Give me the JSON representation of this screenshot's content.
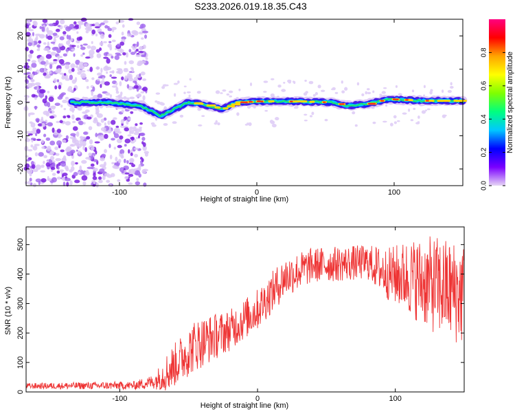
{
  "title": "S233.2026.019.18.35.C43",
  "chart_data": [
    {
      "type": "heatmap",
      "xlabel": "Height of straight line (km)",
      "ylabel": "Frequency (Hz)",
      "xlim": [
        -168,
        150
      ],
      "ylim": [
        -25,
        25
      ],
      "x_ticks": [
        -100,
        0,
        100
      ],
      "y_ticks": [
        -20,
        -10,
        0,
        10,
        20
      ],
      "colorbar": {
        "label": "Normalized spectral amplitude",
        "range": [
          0,
          1
        ],
        "ticks": [
          0.0,
          0.2,
          0.4,
          0.6,
          0.8
        ],
        "tick_labels": [
          "0.0",
          "0.2",
          "0.4",
          "0.6",
          "0.8"
        ],
        "colors": [
          "#e6d6f5",
          "#7a00ff",
          "#0000ff",
          "#00c8ff",
          "#00ff7f",
          "#7fff00",
          "#ffff00",
          "#ffa500",
          "#ff0000",
          "#ff0080"
        ]
      },
      "noise_region_x": [
        -168,
        -80
      ],
      "ridge": [
        {
          "x": -135,
          "f": 0
        },
        {
          "x": -110,
          "f": 0
        },
        {
          "x": -85,
          "f": -1
        },
        {
          "x": -70,
          "f": -4
        },
        {
          "x": -60,
          "f": -2
        },
        {
          "x": -50,
          "f": 0
        },
        {
          "x": -40,
          "f": -0.5
        },
        {
          "x": -25,
          "f": -2
        },
        {
          "x": -15,
          "f": 0
        },
        {
          "x": 0,
          "f": 0.3
        },
        {
          "x": 30,
          "f": 0.3
        },
        {
          "x": 55,
          "f": 0
        },
        {
          "x": 65,
          "f": -1
        },
        {
          "x": 80,
          "f": -0.5
        },
        {
          "x": 95,
          "f": 1
        },
        {
          "x": 120,
          "f": 0.5
        },
        {
          "x": 150,
          "f": 0.5
        }
      ]
    },
    {
      "type": "line",
      "xlabel": "Height of straight line (km)",
      "ylabel": "SNR (10 * v/v)",
      "xlim": [
        -168,
        150
      ],
      "ylim": [
        0,
        560
      ],
      "x_ticks": [
        -100,
        0,
        100
      ],
      "y_ticks": [
        0,
        100,
        200,
        300,
        400,
        500
      ],
      "color": "#ee3333",
      "envelope": [
        {
          "x": -168,
          "mean": 20,
          "spread": 10
        },
        {
          "x": -90,
          "mean": 22,
          "spread": 14
        },
        {
          "x": -75,
          "mean": 35,
          "spread": 25
        },
        {
          "x": -65,
          "mean": 70,
          "spread": 70
        },
        {
          "x": -45,
          "mean": 160,
          "spread": 90
        },
        {
          "x": -20,
          "mean": 210,
          "spread": 70
        },
        {
          "x": 0,
          "mean": 280,
          "spread": 70
        },
        {
          "x": 20,
          "mean": 390,
          "spread": 70
        },
        {
          "x": 40,
          "mean": 430,
          "spread": 60
        },
        {
          "x": 80,
          "mean": 440,
          "spread": 60
        },
        {
          "x": 95,
          "mean": 400,
          "spread": 90
        },
        {
          "x": 110,
          "mean": 390,
          "spread": 130
        },
        {
          "x": 130,
          "mean": 360,
          "spread": 170
        },
        {
          "x": 150,
          "mean": 330,
          "spread": 180
        }
      ]
    }
  ]
}
